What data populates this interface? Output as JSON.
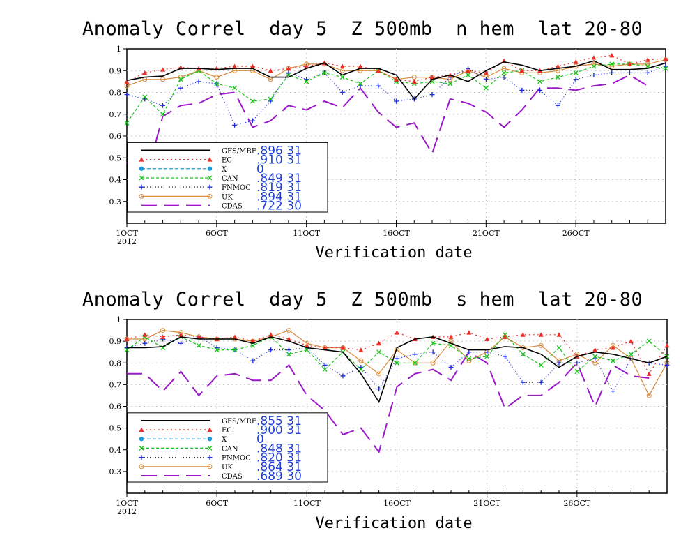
{
  "chart_data": [
    {
      "type": "line",
      "title": "Anomaly Correl  day 5  Z 500mb  n hem  lat 20-80",
      "xlabel": "Verification date",
      "ylabel": "",
      "ylim": [
        0.2,
        1.0
      ],
      "yticks": [
        "0.3",
        "0.4",
        "0.5",
        "0.6",
        "0.7",
        "0.8",
        "0.9",
        "1"
      ],
      "x_range": [
        1,
        31
      ],
      "x_ticks": [
        {
          "day": 1,
          "label": "1OCT",
          "sublabel": "2012"
        },
        {
          "day": 6,
          "label": "6OCT"
        },
        {
          "day": 11,
          "label": "11OCT"
        },
        {
          "day": 16,
          "label": "16OCT"
        },
        {
          "day": 21,
          "label": "21OCT"
        },
        {
          "day": 26,
          "label": "26OCT"
        }
      ],
      "grid": true,
      "legend_position": "bottom-left",
      "series": [
        {
          "name": "GFS/MRF",
          "stat": ".896  31",
          "color": "#000000",
          "dash": "",
          "marker": "none",
          "x": [
            1,
            2,
            3,
            4,
            5,
            6,
            7,
            8,
            9,
            10,
            11,
            12,
            13,
            14,
            15,
            16,
            17,
            18,
            19,
            20,
            21,
            22,
            23,
            24,
            25,
            26,
            27,
            28,
            29,
            30,
            31
          ],
          "values": [
            0.855,
            0.87,
            0.875,
            0.91,
            0.91,
            0.905,
            0.91,
            0.91,
            0.87,
            0.87,
            0.91,
            0.935,
            0.88,
            0.91,
            0.91,
            0.88,
            0.77,
            0.86,
            0.88,
            0.85,
            0.9,
            0.94,
            0.925,
            0.9,
            0.91,
            0.92,
            0.945,
            0.905,
            0.905,
            0.91,
            0.935
          ]
        },
        {
          "name": "EC",
          "stat": ".910  31",
          "color": "#e8302a",
          "dash": "2,4",
          "marker": "triangle",
          "x": [
            1,
            2,
            3,
            4,
            5,
            6,
            7,
            8,
            9,
            10,
            11,
            12,
            13,
            14,
            15,
            16,
            17,
            18,
            19,
            20,
            21,
            22,
            23,
            24,
            25,
            26,
            27,
            28,
            29,
            30,
            31
          ],
          "values": [
            0.85,
            0.89,
            0.905,
            0.915,
            0.91,
            0.91,
            0.92,
            0.92,
            0.9,
            0.91,
            0.92,
            0.935,
            0.92,
            0.92,
            0.9,
            0.86,
            0.85,
            0.87,
            0.88,
            0.9,
            0.89,
            0.945,
            0.9,
            0.9,
            0.92,
            0.94,
            0.96,
            0.97,
            0.93,
            0.95,
            0.955
          ]
        },
        {
          "name": "X",
          "stat": "0",
          "color": "#1e9ad6",
          "dash": "5,3",
          "marker": "circle",
          "x": [],
          "values": []
        },
        {
          "name": "CAN",
          "stat": ".849  31",
          "color": "#19c419",
          "dash": "4,3",
          "marker": "x",
          "x": [
            1,
            2,
            3,
            4,
            5,
            6,
            7,
            8,
            9,
            10,
            11,
            12,
            13,
            14,
            15,
            16,
            17,
            18,
            19,
            20,
            21,
            22,
            23,
            24,
            25,
            26,
            27,
            28,
            29,
            30,
            31
          ],
          "values": [
            0.66,
            0.78,
            0.7,
            0.86,
            0.9,
            0.84,
            0.82,
            0.76,
            0.77,
            0.88,
            0.85,
            0.89,
            0.87,
            0.84,
            0.9,
            0.85,
            0.84,
            0.85,
            0.84,
            0.88,
            0.82,
            0.89,
            0.9,
            0.85,
            0.87,
            0.89,
            0.92,
            0.93,
            0.93,
            0.92,
            0.91
          ]
        },
        {
          "name": "FNMOC",
          "stat": ".819  31",
          "color": "#1a2be0",
          "dash": "1,3",
          "marker": "plus",
          "x": [
            1,
            2,
            3,
            4,
            5,
            6,
            7,
            8,
            9,
            10,
            11,
            12,
            13,
            14,
            15,
            16,
            17,
            18,
            19,
            20,
            21,
            22,
            23,
            24,
            25,
            26,
            27,
            28,
            29,
            30,
            31
          ],
          "values": [
            0.79,
            0.77,
            0.74,
            0.82,
            0.85,
            0.84,
            0.65,
            0.67,
            0.76,
            0.89,
            0.86,
            0.89,
            0.8,
            0.83,
            0.83,
            0.76,
            0.77,
            0.79,
            0.87,
            0.91,
            0.86,
            0.87,
            0.81,
            0.81,
            0.74,
            0.86,
            0.88,
            0.89,
            0.89,
            0.89,
            0.92
          ]
        },
        {
          "name": "UK",
          "stat": ".894  31",
          "color": "#d88a3a",
          "dash": "",
          "marker": "circle",
          "x": [
            1,
            2,
            3,
            4,
            5,
            6,
            7,
            8,
            9,
            10,
            11,
            12,
            13,
            14,
            15,
            16,
            17,
            18,
            19,
            20,
            21,
            22,
            23,
            24,
            25,
            26,
            27,
            28,
            29,
            30,
            31
          ],
          "values": [
            0.83,
            0.86,
            0.86,
            0.87,
            0.9,
            0.87,
            0.9,
            0.9,
            0.86,
            0.91,
            0.93,
            0.93,
            0.9,
            0.9,
            0.9,
            0.86,
            0.87,
            0.87,
            0.86,
            0.9,
            0.87,
            0.91,
            0.89,
            0.89,
            0.9,
            0.92,
            0.93,
            0.92,
            0.93,
            0.93,
            0.95
          ]
        },
        {
          "name": "CDAS",
          "stat": ".722  30",
          "color": "#9a18c8",
          "dash": "22,10",
          "marker": "none",
          "x": [
            1,
            2,
            3,
            4,
            5,
            6,
            7,
            8,
            9,
            10,
            11,
            12,
            13,
            14,
            15,
            16,
            17,
            18,
            19,
            20,
            21,
            22,
            23,
            24,
            25,
            26,
            27,
            28,
            29,
            30
          ],
          "values": [
            0.48,
            0.39,
            0.69,
            0.74,
            0.75,
            0.79,
            0.8,
            0.64,
            0.67,
            0.74,
            0.72,
            0.76,
            0.73,
            0.82,
            0.71,
            0.64,
            0.66,
            0.52,
            0.77,
            0.75,
            0.71,
            0.64,
            0.72,
            0.82,
            0.82,
            0.81,
            0.83,
            0.84,
            0.88,
            0.83
          ]
        }
      ]
    },
    {
      "type": "line",
      "title": "Anomaly Correl  day 5  Z 500mb  s hem  lat 20-80",
      "xlabel": "Verification date",
      "ylabel": "",
      "ylim": [
        0.2,
        1.0
      ],
      "yticks": [
        "0.3",
        "0.4",
        "0.5",
        "0.6",
        "0.7",
        "0.8",
        "0.9",
        "1"
      ],
      "x_range": [
        1,
        31
      ],
      "x_ticks": [
        {
          "day": 1,
          "label": "1OCT",
          "sublabel": "2012"
        },
        {
          "day": 6,
          "label": "6OCT"
        },
        {
          "day": 11,
          "label": "11OCT"
        },
        {
          "day": 16,
          "label": "16OCT"
        },
        {
          "day": 21,
          "label": "21OCT"
        },
        {
          "day": 26,
          "label": "26OCT"
        }
      ],
      "grid": true,
      "legend_position": "bottom-left",
      "series": [
        {
          "name": "GFS/MRF",
          "stat": ".855  31",
          "color": "#000000",
          "dash": "",
          "marker": "none",
          "x": [
            1,
            2,
            3,
            4,
            5,
            6,
            7,
            8,
            9,
            10,
            11,
            12,
            13,
            14,
            15,
            16,
            17,
            18,
            19,
            20,
            21,
            22,
            23,
            24,
            25,
            26,
            27,
            28,
            29,
            30,
            31
          ],
          "values": [
            0.87,
            0.87,
            0.875,
            0.92,
            0.91,
            0.91,
            0.91,
            0.89,
            0.92,
            0.9,
            0.87,
            0.86,
            0.85,
            0.75,
            0.62,
            0.87,
            0.91,
            0.92,
            0.89,
            0.86,
            0.86,
            0.875,
            0.87,
            0.84,
            0.78,
            0.83,
            0.85,
            0.84,
            0.82,
            0.8,
            0.83
          ]
        },
        {
          "name": "EC",
          "stat": ".900  31",
          "color": "#e8302a",
          "dash": "2,4",
          "marker": "triangle",
          "x": [
            1,
            2,
            3,
            4,
            5,
            6,
            7,
            8,
            9,
            10,
            11,
            12,
            13,
            14,
            15,
            16,
            17,
            18,
            19,
            20,
            21,
            22,
            23,
            24,
            25,
            26,
            27,
            28,
            29,
            30,
            31
          ],
          "values": [
            0.91,
            0.93,
            0.92,
            0.93,
            0.92,
            0.91,
            0.92,
            0.9,
            0.93,
            0.91,
            0.88,
            0.87,
            0.87,
            0.86,
            0.89,
            0.94,
            0.91,
            0.92,
            0.92,
            0.94,
            0.91,
            0.92,
            0.93,
            0.93,
            0.93,
            0.83,
            0.86,
            0.87,
            0.9,
            0.75,
            0.88
          ]
        },
        {
          "name": "X",
          "stat": "0",
          "color": "#1e9ad6",
          "dash": "5,3",
          "marker": "circle",
          "x": [],
          "values": []
        },
        {
          "name": "CAN",
          "stat": ".848  31",
          "color": "#19c419",
          "dash": "4,3",
          "marker": "x",
          "x": [
            1,
            2,
            3,
            4,
            5,
            6,
            7,
            8,
            9,
            10,
            11,
            12,
            13,
            14,
            15,
            16,
            17,
            18,
            19,
            20,
            21,
            22,
            23,
            24,
            25,
            26,
            27,
            28,
            29,
            30,
            31
          ],
          "values": [
            0.86,
            0.92,
            0.87,
            0.92,
            0.88,
            0.86,
            0.86,
            0.88,
            0.92,
            0.84,
            0.86,
            0.77,
            0.85,
            0.77,
            0.85,
            0.8,
            0.8,
            0.89,
            0.88,
            0.82,
            0.83,
            0.93,
            0.84,
            0.79,
            0.87,
            0.76,
            0.83,
            0.81,
            0.84,
            0.9,
            0.83
          ]
        },
        {
          "name": "FNMOC",
          "stat": ".820  31",
          "color": "#1a2be0",
          "dash": "1,3",
          "marker": "plus",
          "x": [
            1,
            2,
            3,
            4,
            5,
            6,
            7,
            8,
            9,
            10,
            11,
            12,
            13,
            14,
            15,
            16,
            17,
            18,
            19,
            20,
            21,
            22,
            23,
            24,
            25,
            26,
            27,
            28,
            29,
            30,
            31
          ],
          "values": [
            0.87,
            0.89,
            0.91,
            0.89,
            0.92,
            0.87,
            0.86,
            0.81,
            0.86,
            0.86,
            0.87,
            0.79,
            0.74,
            0.78,
            0.68,
            0.82,
            0.84,
            0.85,
            0.78,
            0.85,
            0.85,
            0.83,
            0.71,
            0.71,
            0.8,
            0.8,
            0.82,
            0.67,
            0.82,
            0.8,
            0.79
          ]
        },
        {
          "name": "UK",
          "stat": ".864  31",
          "color": "#d88a3a",
          "dash": "",
          "marker": "circle",
          "x": [
            1,
            2,
            3,
            4,
            5,
            6,
            7,
            8,
            9,
            10,
            11,
            12,
            13,
            14,
            15,
            16,
            17,
            18,
            19,
            20,
            21,
            22,
            23,
            24,
            25,
            26,
            27,
            28,
            29,
            30,
            31
          ],
          "values": [
            0.91,
            0.91,
            0.95,
            0.94,
            0.92,
            0.91,
            0.91,
            0.9,
            0.92,
            0.95,
            0.89,
            0.87,
            0.87,
            0.81,
            0.75,
            0.86,
            0.8,
            0.8,
            0.9,
            0.81,
            0.85,
            0.92,
            0.87,
            0.88,
            0.81,
            0.84,
            0.8,
            0.88,
            0.82,
            0.65,
            0.8
          ]
        },
        {
          "name": "CDAS",
          "stat": ".689  30",
          "color": "#9a18c8",
          "dash": "22,10",
          "marker": "none",
          "x": [
            1,
            2,
            3,
            4,
            5,
            6,
            7,
            8,
            9,
            10,
            11,
            12,
            13,
            14,
            15,
            16,
            17,
            18,
            19,
            20,
            21,
            22,
            23,
            24,
            25,
            26,
            27,
            28,
            29,
            30
          ],
          "values": [
            0.75,
            0.75,
            0.67,
            0.76,
            0.65,
            0.74,
            0.75,
            0.72,
            0.72,
            0.79,
            0.65,
            0.58,
            0.47,
            0.5,
            0.39,
            0.69,
            0.75,
            0.77,
            0.72,
            0.85,
            0.8,
            0.59,
            0.65,
            0.65,
            0.71,
            0.8,
            0.6,
            0.79,
            0.74,
            0.73
          ]
        }
      ]
    }
  ]
}
